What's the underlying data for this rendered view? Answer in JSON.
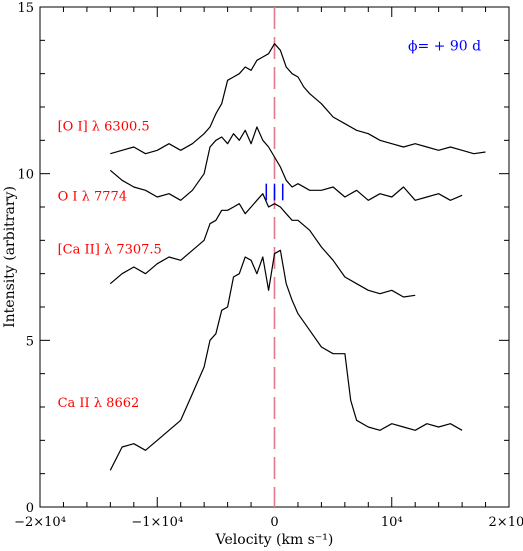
{
  "colors": {
    "axis": "#000000",
    "curves": "#000000",
    "labels": "#ff0000",
    "phase": "#0000ff",
    "zero_line": "#e07a8c",
    "markers": "#0000ff"
  },
  "chart_data": {
    "type": "line",
    "xlabel": "Velocity (km s⁻¹)",
    "ylabel": "Intensity (arbitrary)",
    "xlim": [
      -20000,
      20000
    ],
    "ylim": [
      0,
      15
    ],
    "x_tick_labels": [
      {
        "value": -20000,
        "label": "−2×10⁴"
      },
      {
        "value": -10000,
        "label": "−1×10⁴"
      },
      {
        "value": 0,
        "label": "0"
      },
      {
        "value": 10000,
        "label": "10⁴"
      },
      {
        "value": 20000,
        "label": "2×10⁴"
      }
    ],
    "y_tick_labels": [
      {
        "value": 0,
        "label": "0"
      },
      {
        "value": 5,
        "label": "5"
      },
      {
        "value": 10,
        "label": "10"
      },
      {
        "value": 15,
        "label": "15"
      }
    ],
    "annotation": "ϕ= + 90 d",
    "zero_line_x": 0,
    "marker_velocities": [
      -700,
      0,
      700
    ],
    "marker_range": [
      9.2,
      9.7
    ],
    "series": [
      {
        "name": "[O I] λ 6300.5",
        "label_anchor": [
          -18500,
          11.3
        ],
        "x": [
          -14000,
          -13000,
          -12000,
          -11000,
          -10000,
          -9000,
          -8000,
          -7000,
          -6000,
          -5500,
          -5000,
          -4500,
          -4000,
          -3500,
          -3000,
          -2500,
          -2000,
          -1500,
          -1000,
          -500,
          0,
          500,
          1000,
          1500,
          2000,
          2500,
          3000,
          4000,
          5000,
          6000,
          7000,
          8000,
          9000,
          10000,
          11000,
          12000,
          13000,
          14000,
          15000,
          16000,
          17000,
          18000
        ],
        "y": [
          10.6,
          10.7,
          10.8,
          10.6,
          10.7,
          10.9,
          10.7,
          10.9,
          11.2,
          11.4,
          11.8,
          12.1,
          12.8,
          12.9,
          13.0,
          13.2,
          13.1,
          13.4,
          13.5,
          13.6,
          13.9,
          13.7,
          13.2,
          13.0,
          12.9,
          12.6,
          12.4,
          12.1,
          11.7,
          11.5,
          11.3,
          11.2,
          11.0,
          10.9,
          10.8,
          10.9,
          10.8,
          10.7,
          10.8,
          10.7,
          10.6,
          10.65
        ]
      },
      {
        "name": "O I λ 7774",
        "label_anchor": [
          -18500,
          9.2
        ],
        "x": [
          -14000,
          -13000,
          -12000,
          -11000,
          -10000,
          -9000,
          -8000,
          -7000,
          -6000,
          -5500,
          -5000,
          -4500,
          -4000,
          -3500,
          -3000,
          -2500,
          -2000,
          -1500,
          -1000,
          -500,
          0,
          500,
          1000,
          1500,
          2000,
          3000,
          4000,
          5000,
          6000,
          7000,
          8000,
          9000,
          10000,
          11000,
          12000,
          13000,
          14000,
          15000,
          16000
        ],
        "y": [
          10.1,
          9.8,
          9.6,
          9.5,
          9.3,
          9.4,
          9.2,
          9.5,
          10.0,
          10.8,
          11.0,
          11.1,
          10.9,
          11.2,
          11.0,
          11.3,
          10.9,
          11.4,
          11.0,
          10.8,
          10.5,
          10.2,
          9.8,
          9.6,
          9.7,
          9.5,
          9.5,
          9.6,
          9.3,
          9.5,
          9.2,
          9.4,
          9.3,
          9.6,
          9.2,
          9.3,
          9.4,
          9.2,
          9.35
        ]
      },
      {
        "name": "[Ca II] λ 7307.5",
        "label_anchor": [
          -18500,
          7.6
        ],
        "x": [
          -14000,
          -13000,
          -12000,
          -11000,
          -10000,
          -9000,
          -8000,
          -7000,
          -6000,
          -5500,
          -5000,
          -4500,
          -4000,
          -3500,
          -3000,
          -2500,
          -2000,
          -1500,
          -1000,
          -500,
          0,
          500,
          1000,
          1500,
          2000,
          3000,
          4000,
          5000,
          6000,
          7000,
          8000,
          9000,
          10000,
          11000,
          12000
        ],
        "y": [
          6.7,
          7.0,
          7.2,
          7.0,
          7.3,
          7.5,
          7.4,
          7.7,
          8.0,
          8.5,
          8.6,
          8.9,
          8.9,
          9.0,
          9.1,
          8.8,
          9.0,
          9.2,
          9.4,
          9.0,
          9.1,
          9.0,
          8.8,
          8.6,
          8.6,
          8.3,
          7.8,
          7.4,
          6.9,
          6.7,
          6.5,
          6.4,
          6.5,
          6.3,
          6.35
        ]
      },
      {
        "name": "Ca II λ 8662",
        "label_anchor": [
          -18500,
          3.0
        ],
        "x": [
          -14000,
          -13000,
          -12000,
          -11000,
          -10000,
          -9000,
          -8000,
          -7000,
          -6000,
          -5500,
          -5000,
          -4500,
          -4000,
          -3500,
          -3000,
          -2500,
          -2000,
          -1500,
          -1000,
          -500,
          0,
          500,
          1000,
          1500,
          2000,
          3000,
          4000,
          5000,
          6000,
          6500,
          7000,
          8000,
          9000,
          10000,
          11000,
          12000,
          13000,
          14000,
          15000,
          16000
        ],
        "y": [
          1.1,
          1.8,
          1.9,
          1.7,
          2.0,
          2.3,
          2.6,
          3.4,
          4.2,
          5.0,
          5.2,
          5.9,
          6.0,
          6.9,
          7.0,
          7.5,
          7.4,
          7.0,
          7.5,
          6.5,
          7.6,
          7.7,
          6.7,
          6.2,
          5.8,
          5.3,
          4.8,
          4.6,
          4.6,
          3.2,
          2.6,
          2.4,
          2.3,
          2.5,
          2.4,
          2.3,
          2.5,
          2.4,
          2.5,
          2.3
        ]
      }
    ]
  }
}
